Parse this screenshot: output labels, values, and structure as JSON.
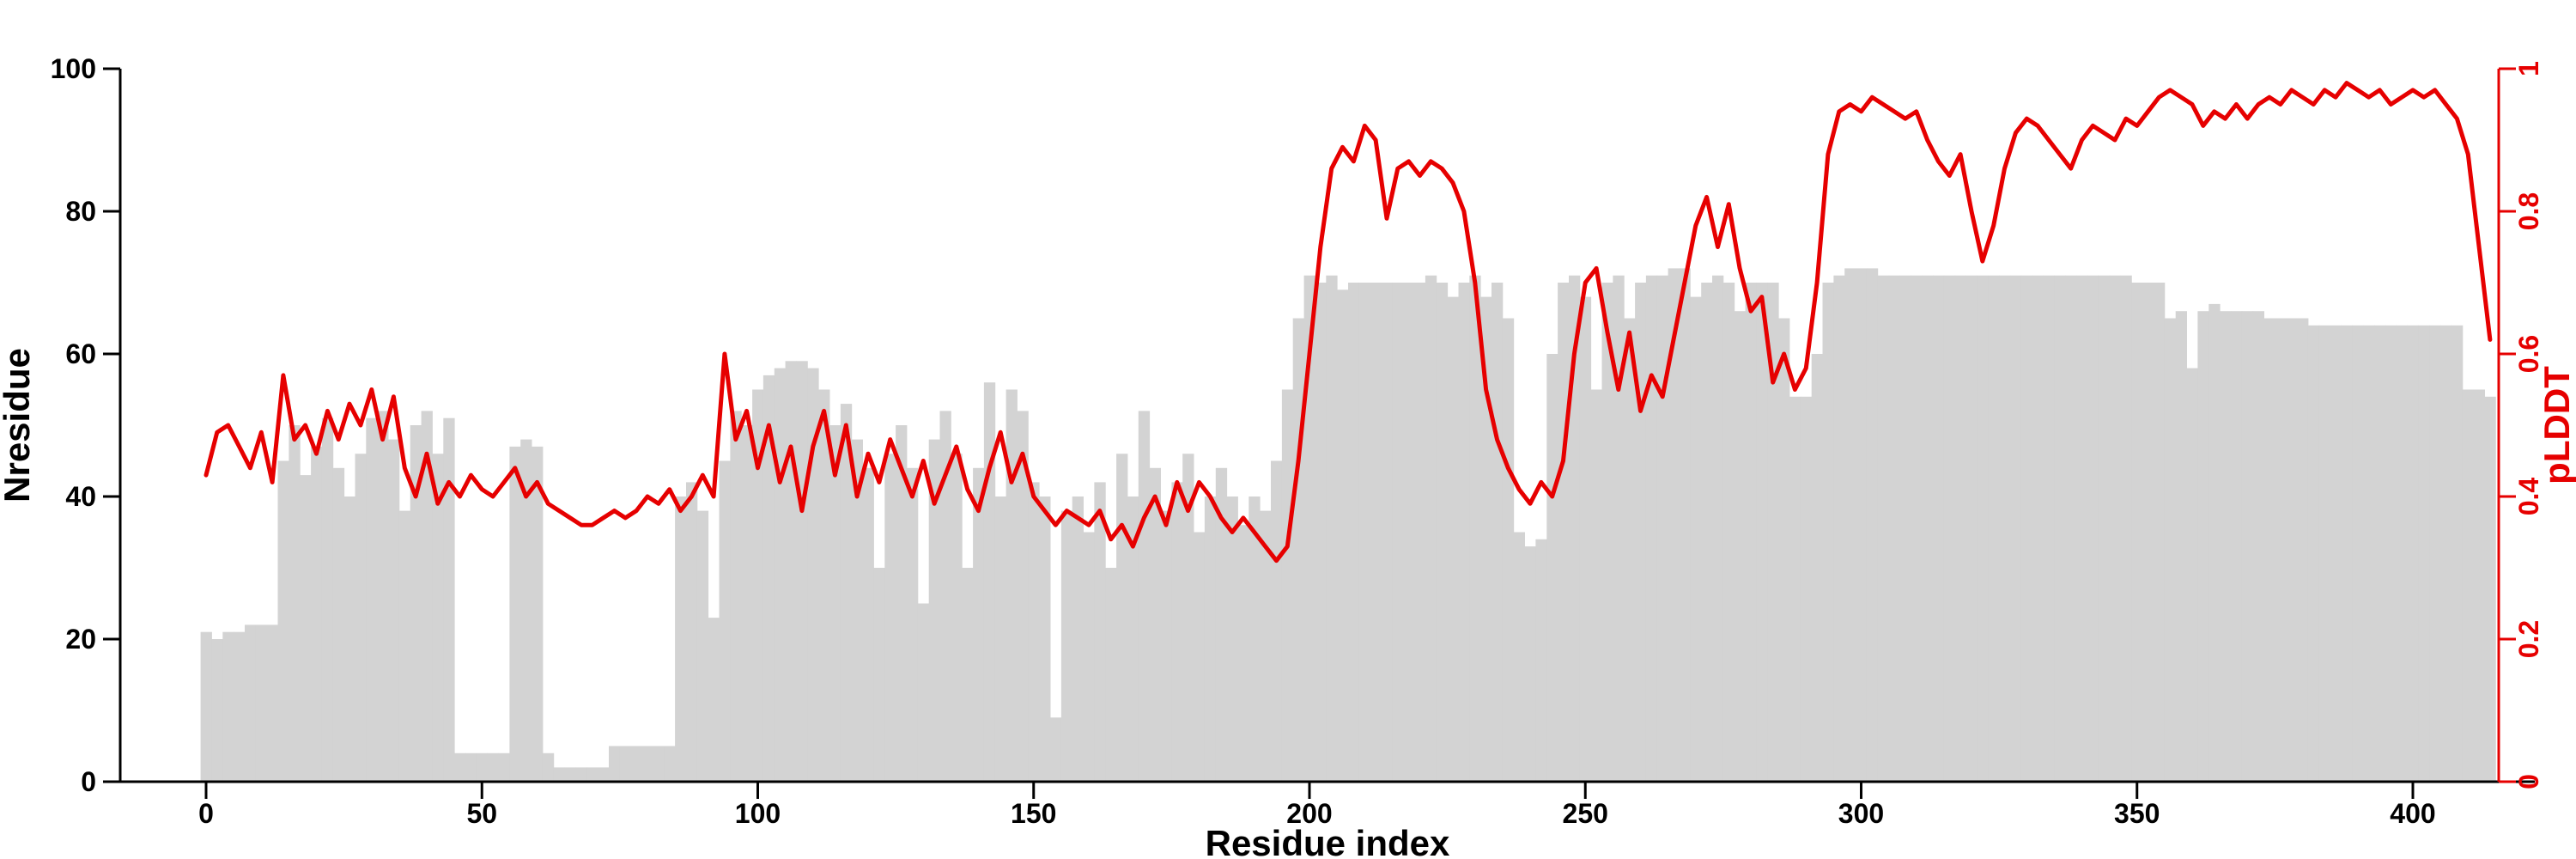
{
  "chart_data": {
    "type": "bar",
    "subtype": "bar-with-line-overlay",
    "title": "",
    "xlabel": "Residue index",
    "ylabel_left": "Nresidue",
    "ylabel_right": "pLDDT",
    "xlim": [
      -15,
      430
    ],
    "ylim_left": [
      0,
      100
    ],
    "ylim_right": [
      0,
      1
    ],
    "x_ticks": [
      0,
      50,
      100,
      150,
      200,
      250,
      300,
      350,
      400
    ],
    "y_left_ticks": [
      0,
      20,
      40,
      60,
      80,
      100
    ],
    "y_right_ticks": [
      "0",
      "0.2",
      "0.4",
      "0.6",
      "0.8",
      "1"
    ],
    "y_right_tick_values": [
      0,
      0.2,
      0.4,
      0.6,
      0.8,
      1
    ],
    "grid": false,
    "legend": "none",
    "x_start": 0,
    "x_step": 2,
    "x_end": 414,
    "colors": {
      "bar": "#d3d3d3",
      "line": "#e60000",
      "axis_left": "#000000",
      "axis_bottom": "#000000",
      "axis_right": "#e60000",
      "background": "#ffffff"
    },
    "series": [
      {
        "name": "Nresidue",
        "type": "bar",
        "axis": "left",
        "values": [
          21,
          20,
          21,
          21,
          22,
          22,
          22,
          45,
          50,
          43,
          47,
          51,
          44,
          40,
          46,
          51,
          52,
          48,
          38,
          50,
          52,
          46,
          51,
          4,
          4,
          4,
          4,
          4,
          47,
          48,
          47,
          4,
          2,
          2,
          2,
          2,
          2,
          5,
          5,
          5,
          5,
          5,
          5,
          40,
          42,
          38,
          23,
          45,
          52,
          50,
          55,
          57,
          58,
          59,
          59,
          58,
          55,
          50,
          53,
          48,
          44,
          30,
          46,
          50,
          44,
          25,
          48,
          52,
          46,
          30,
          44,
          56,
          40,
          55,
          52,
          42,
          40,
          9,
          38,
          40,
          35,
          42,
          30,
          46,
          40,
          52,
          44,
          38,
          42,
          46,
          35,
          40,
          44,
          40,
          36,
          40,
          38,
          45,
          55,
          65,
          71,
          70,
          71,
          69,
          70,
          70,
          70,
          70,
          70,
          70,
          70,
          71,
          70,
          68,
          70,
          71,
          68,
          70,
          65,
          35,
          33,
          34,
          60,
          70,
          71,
          68,
          55,
          70,
          71,
          65,
          70,
          71,
          71,
          72,
          72,
          68,
          70,
          71,
          70,
          66,
          70,
          70,
          70,
          65,
          54,
          54,
          60,
          70,
          71,
          72,
          72,
          72,
          71,
          71,
          71,
          71,
          71,
          71,
          71,
          71,
          71,
          71,
          71,
          71,
          71,
          71,
          71,
          71,
          71,
          71,
          71,
          71,
          71,
          71,
          71,
          70,
          70,
          70,
          65,
          66,
          58,
          66,
          67,
          66,
          66,
          66,
          66,
          65,
          65,
          65,
          65,
          64,
          64,
          64,
          64,
          64,
          64,
          64,
          64,
          64,
          64,
          64,
          64,
          64,
          64,
          55,
          55,
          54
        ]
      },
      {
        "name": "pLDDT",
        "type": "line",
        "axis": "right",
        "values": [
          0.43,
          0.49,
          0.5,
          0.47,
          0.44,
          0.49,
          0.42,
          0.57,
          0.48,
          0.5,
          0.46,
          0.52,
          0.48,
          0.53,
          0.5,
          0.55,
          0.48,
          0.54,
          0.44,
          0.4,
          0.46,
          0.39,
          0.42,
          0.4,
          0.43,
          0.41,
          0.4,
          0.42,
          0.44,
          0.4,
          0.42,
          0.39,
          0.38,
          0.37,
          0.36,
          0.36,
          0.37,
          0.38,
          0.37,
          0.38,
          0.4,
          0.39,
          0.41,
          0.38,
          0.4,
          0.43,
          0.4,
          0.6,
          0.48,
          0.52,
          0.44,
          0.5,
          0.42,
          0.47,
          0.38,
          0.47,
          0.52,
          0.43,
          0.5,
          0.4,
          0.46,
          0.42,
          0.48,
          0.44,
          0.4,
          0.45,
          0.39,
          0.43,
          0.47,
          0.41,
          0.38,
          0.44,
          0.49,
          0.42,
          0.46,
          0.4,
          0.38,
          0.36,
          0.38,
          0.37,
          0.36,
          0.38,
          0.34,
          0.36,
          0.33,
          0.37,
          0.4,
          0.36,
          0.42,
          0.38,
          0.42,
          0.4,
          0.37,
          0.35,
          0.37,
          0.35,
          0.33,
          0.31,
          0.33,
          0.45,
          0.6,
          0.75,
          0.86,
          0.89,
          0.87,
          0.92,
          0.9,
          0.79,
          0.86,
          0.87,
          0.85,
          0.87,
          0.86,
          0.84,
          0.8,
          0.7,
          0.55,
          0.48,
          0.44,
          0.41,
          0.39,
          0.42,
          0.4,
          0.45,
          0.6,
          0.7,
          0.72,
          0.63,
          0.55,
          0.63,
          0.52,
          0.57,
          0.54,
          0.62,
          0.7,
          0.78,
          0.82,
          0.75,
          0.81,
          0.72,
          0.66,
          0.68,
          0.56,
          0.6,
          0.55,
          0.58,
          0.7,
          0.88,
          0.94,
          0.95,
          0.94,
          0.96,
          0.95,
          0.94,
          0.93,
          0.94,
          0.9,
          0.87,
          0.85,
          0.88,
          0.8,
          0.73,
          0.78,
          0.86,
          0.91,
          0.93,
          0.92,
          0.9,
          0.88,
          0.86,
          0.9,
          0.92,
          0.91,
          0.9,
          0.93,
          0.92,
          0.94,
          0.96,
          0.97,
          0.96,
          0.95,
          0.92,
          0.94,
          0.93,
          0.95,
          0.93,
          0.95,
          0.96,
          0.95,
          0.97,
          0.96,
          0.95,
          0.97,
          0.96,
          0.98,
          0.97,
          0.96,
          0.97,
          0.95,
          0.96,
          0.97,
          0.96,
          0.97,
          0.95,
          0.93,
          0.88,
          0.75,
          0.62
        ]
      }
    ]
  }
}
